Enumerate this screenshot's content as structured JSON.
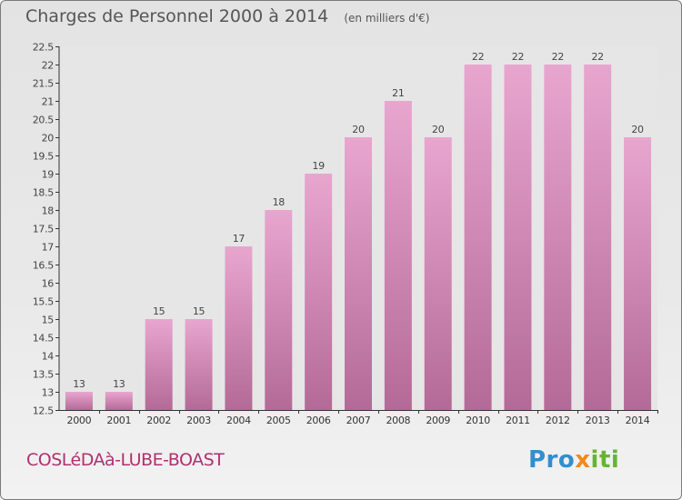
{
  "chart_data": {
    "type": "bar",
    "title": "Charges de Personnel 2000 à 2014",
    "subtitle": "(en milliers d'€)",
    "categories": [
      "2000",
      "2001",
      "2002",
      "2003",
      "2004",
      "2005",
      "2006",
      "2007",
      "2008",
      "2009",
      "2010",
      "2011",
      "2012",
      "2013",
      "2014"
    ],
    "values": [
      13,
      13,
      15,
      15,
      17,
      18,
      19,
      20,
      21,
      20,
      22,
      22,
      22,
      22,
      20
    ],
    "value_labels": [
      "13",
      "13",
      "15",
      "15",
      "17",
      "18",
      "19",
      "20",
      "21",
      "20",
      "22",
      "22",
      "22",
      "22",
      "20"
    ],
    "ylim": [
      12.5,
      22.5
    ],
    "yticks": [
      "12.5",
      "13",
      "13.5",
      "14",
      "14.5",
      "15",
      "15.5",
      "16",
      "16.5",
      "17",
      "17.5",
      "18",
      "18.5",
      "19",
      "19.5",
      "20",
      "20.5",
      "21",
      "21.5",
      "22",
      "22.5"
    ],
    "xlabel": "",
    "ylabel": "",
    "grid": false,
    "bar_color_top": "#e8a6cf",
    "bar_color_bottom": "#b46a97"
  },
  "footer": {
    "commune": "COSLéDAà-LUBE-BOAST",
    "brand_parts": [
      {
        "text": "Pro",
        "cls": "c1"
      },
      {
        "text": "x",
        "cls": "c2"
      },
      {
        "text": "iti",
        "cls": "c3"
      }
    ]
  }
}
